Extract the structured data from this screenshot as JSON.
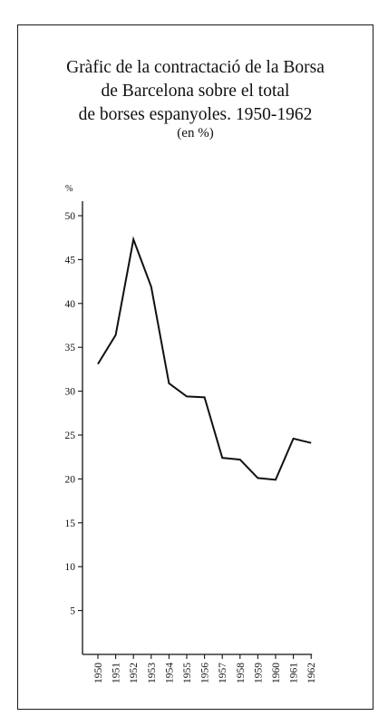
{
  "chart_data": {
    "type": "line",
    "title_lines": [
      "Gràfic de la contractació de la Borsa",
      "de Barcelona sobre el total",
      "de borses espanyoles. 1950-1962"
    ],
    "subtitle": "(en %)",
    "ylabel": "%",
    "xlabel": "",
    "ylim": [
      0,
      50
    ],
    "yticks": [
      5,
      10,
      15,
      20,
      25,
      30,
      35,
      40,
      45,
      50
    ],
    "categories": [
      "1950",
      "1951",
      "1952",
      "1953",
      "1954",
      "1955",
      "1956",
      "1957",
      "1958",
      "1959",
      "1960",
      "1961",
      "1962"
    ],
    "series": [
      {
        "values": [
          33.1,
          36.4,
          47.3,
          41.9,
          30.9,
          29.4,
          29.3,
          22.4,
          22.2,
          20.1,
          19.9,
          24.6,
          24.1
        ]
      }
    ],
    "grid": false,
    "line_color": "#111111"
  }
}
